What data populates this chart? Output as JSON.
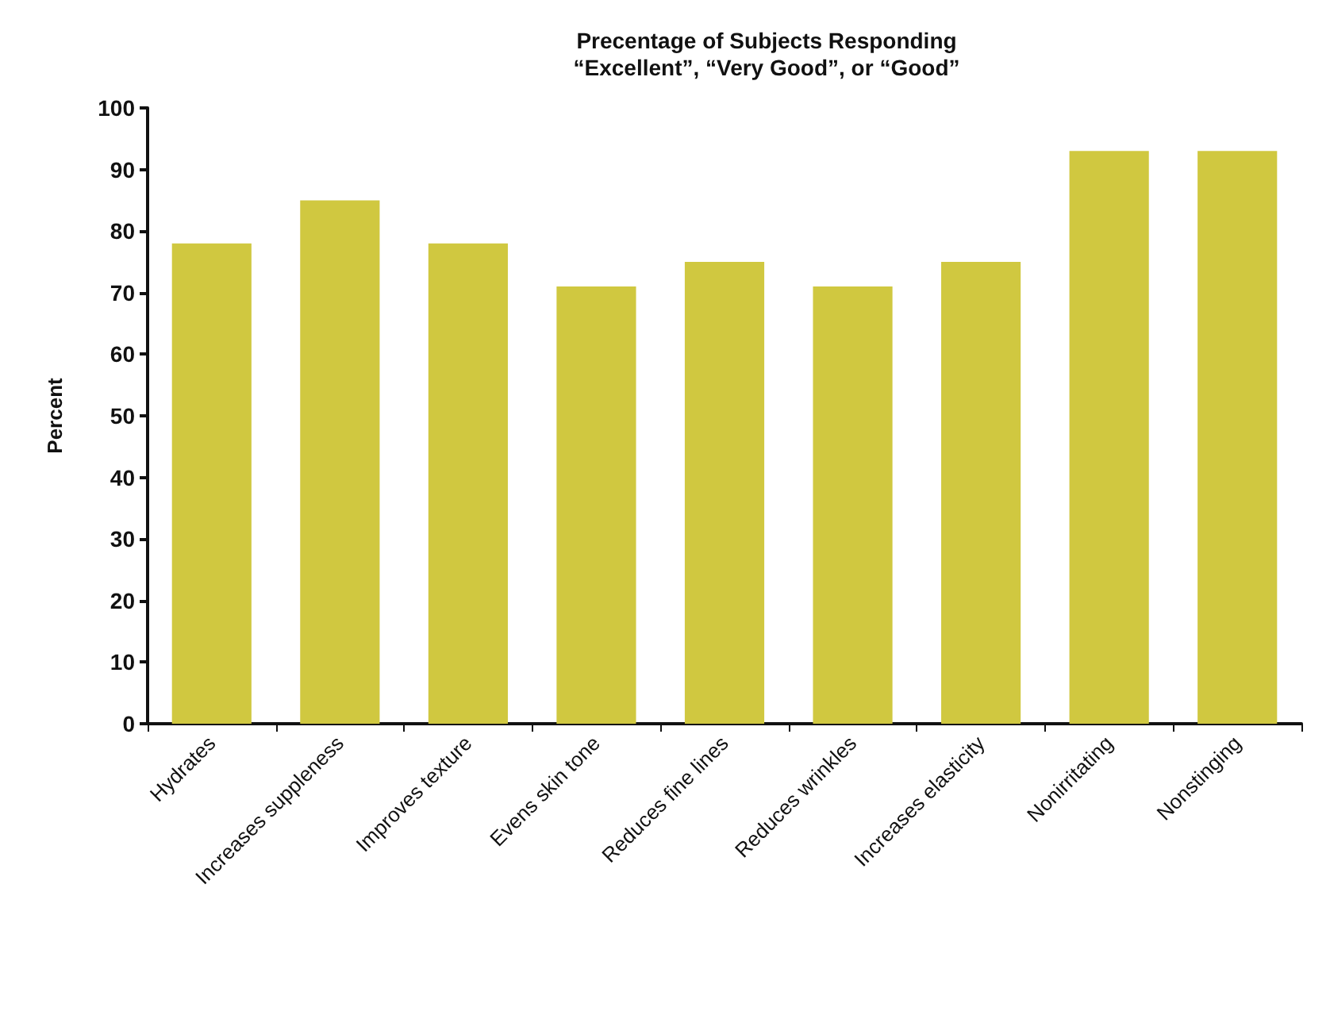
{
  "chart_data": {
    "type": "bar",
    "title": "Precentage of Subjects Responding\n“Excellent”, “Very Good”, or “Good”",
    "ylabel": "Percent",
    "categories": [
      "Hydrates",
      "Increases suppleness",
      "Improves texture",
      "Evens skin tone",
      "Reduces fine lines",
      "Reduces wrinkles",
      "Increases elasticity",
      "Nonirritating",
      "Nonstinging"
    ],
    "values": [
      78,
      85,
      78,
      71,
      75,
      71,
      75,
      93,
      93
    ],
    "color": "#d0c840",
    "ylim": [
      0,
      100
    ],
    "yticks": [
      0,
      10,
      20,
      30,
      40,
      50,
      60,
      70,
      80,
      90,
      100
    ],
    "grid": false
  }
}
